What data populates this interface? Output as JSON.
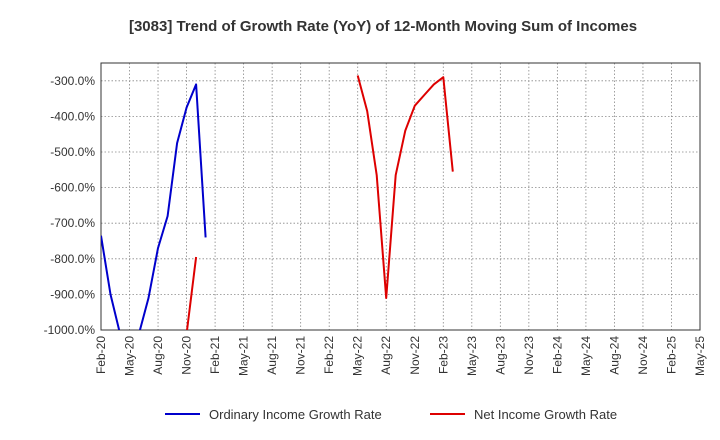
{
  "chart_data": {
    "type": "line",
    "title": "[3083]  Trend of Growth Rate (YoY) of 12-Month Moving Sum of Incomes",
    "xlabel": "",
    "ylabel": "",
    "x_ticks": [
      "Feb-20",
      "May-20",
      "Aug-20",
      "Nov-20",
      "Feb-21",
      "May-21",
      "Aug-21",
      "Nov-21",
      "Feb-22",
      "May-22",
      "Aug-22",
      "Nov-22",
      "Feb-23",
      "May-23",
      "Aug-23",
      "Nov-23",
      "Feb-24",
      "May-24",
      "Aug-24",
      "Nov-24",
      "Feb-25",
      "May-25"
    ],
    "y_ticks": [
      "-300.0%",
      "-400.0%",
      "-500.0%",
      "-600.0%",
      "-700.0%",
      "-800.0%",
      "-900.0%",
      "-1000.0%"
    ],
    "ylim": [
      -1000,
      -250
    ],
    "x_range": [
      "Feb-20",
      "May-25"
    ],
    "grid": true,
    "legend_position": "bottom",
    "series": [
      {
        "name": "Ordinary Income Growth Rate",
        "color": "#0000cc",
        "points": [
          {
            "x": "Feb-20",
            "y": -735
          },
          {
            "x": "Mar-20",
            "y": -900
          },
          {
            "x": "Apr-20",
            "y": -1010
          },
          {
            "x": "May-20",
            "y": null
          },
          {
            "x": "Jun-20",
            "y": -1010
          },
          {
            "x": "Jul-20",
            "y": -910
          },
          {
            "x": "Aug-20",
            "y": -770
          },
          {
            "x": "Sep-20",
            "y": -680
          },
          {
            "x": "Oct-20",
            "y": -475
          },
          {
            "x": "Nov-20",
            "y": -375
          },
          {
            "x": "Dec-20",
            "y": -310
          },
          {
            "x": "Jan-21",
            "y": -740
          }
        ]
      },
      {
        "name": "Net Income Growth Rate",
        "color": "#dd0000",
        "points": [
          {
            "x": "Nov-20",
            "y": -1010
          },
          {
            "x": "Dec-20",
            "y": -795
          },
          {
            "x": "Jan-21",
            "y": null
          },
          {
            "x": "May-22",
            "y": -285
          },
          {
            "x": "Jun-22",
            "y": -385
          },
          {
            "x": "Jul-22",
            "y": -565
          },
          {
            "x": "Aug-22",
            "y": -910
          },
          {
            "x": "Sep-22",
            "y": -565
          },
          {
            "x": "Oct-22",
            "y": -440
          },
          {
            "x": "Nov-22",
            "y": -370
          },
          {
            "x": "Dec-22",
            "y": -340
          },
          {
            "x": "Jan-23",
            "y": -310
          },
          {
            "x": "Feb-23",
            "y": -290
          },
          {
            "x": "Mar-23",
            "y": -555
          }
        ]
      }
    ]
  }
}
